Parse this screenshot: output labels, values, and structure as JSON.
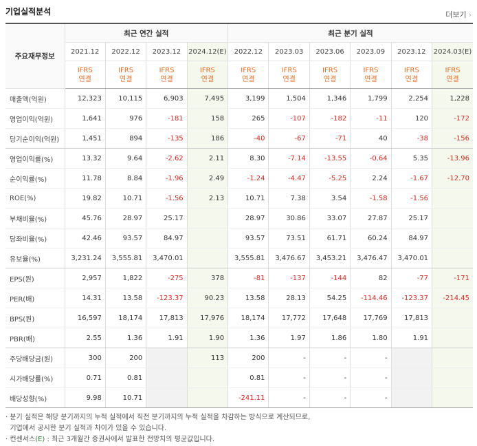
{
  "header": {
    "title": "기업실적분석",
    "more_label": "더보기",
    "more_chevron": "›"
  },
  "table": {
    "label_header": "주요재무정보",
    "group_headers": [
      "최근 연간 실적",
      "최근 분기 실적"
    ],
    "periods": [
      "2021.12",
      "2022.12",
      "2023.12",
      "2024.12(E)",
      "2022.12",
      "2023.03",
      "2023.06",
      "2023.09",
      "2023.12",
      "2024.03(E)"
    ],
    "accounting": {
      "line1": "IFRS",
      "line2": "연결"
    },
    "rows": [
      {
        "label": "매출액(억원)",
        "values": [
          "12,323",
          "10,115",
          "6,903",
          "7,495",
          "3,199",
          "1,504",
          "1,346",
          "1,799",
          "2,254",
          "1,228"
        ]
      },
      {
        "label": "영업이익(억원)",
        "values": [
          "1,641",
          "976",
          "-181",
          "158",
          "265",
          "-107",
          "-182",
          "-11",
          "120",
          "-172"
        ]
      },
      {
        "label": "당기순이익(억원)",
        "values": [
          "1,451",
          "894",
          "-135",
          "186",
          "-40",
          "-67",
          "-71",
          "40",
          "-38",
          "-156"
        ]
      },
      {
        "label": "영업이익률(%)",
        "values": [
          "13.32",
          "9.64",
          "-2.62",
          "2.11",
          "8.30",
          "-7.14",
          "-13.55",
          "-0.64",
          "5.35",
          "-13.96"
        ]
      },
      {
        "label": "순이익률(%)",
        "values": [
          "11.78",
          "8.84",
          "-1.96",
          "2.49",
          "-1.24",
          "-4.47",
          "-5.25",
          "2.24",
          "-1.67",
          "-12.70"
        ]
      },
      {
        "label": "ROE(%)",
        "values": [
          "19.82",
          "10.71",
          "-1.56",
          "2.13",
          "10.71",
          "7.38",
          "3.54",
          "-1.58",
          "-1.56",
          ""
        ]
      },
      {
        "label": "부채비율(%)",
        "values": [
          "45.76",
          "28.97",
          "25.17",
          "",
          "28.97",
          "30.86",
          "33.07",
          "27.87",
          "25.17",
          ""
        ]
      },
      {
        "label": "당좌비율(%)",
        "values": [
          "42.46",
          "93.57",
          "84.97",
          "",
          "93.57",
          "73.51",
          "61.71",
          "60.24",
          "84.97",
          ""
        ]
      },
      {
        "label": "유보율(%)",
        "values": [
          "3,231.24",
          "3,555.81",
          "3,470.01",
          "",
          "3,555.81",
          "3,476.67",
          "3,453.21",
          "3,476.47",
          "3,470.01",
          ""
        ]
      },
      {
        "label": "EPS(원)",
        "values": [
          "2,957",
          "1,822",
          "-275",
          "378",
          "-81",
          "-137",
          "-144",
          "82",
          "-77",
          "-171"
        ]
      },
      {
        "label": "PER(배)",
        "values": [
          "14.31",
          "13.58",
          "-123.37",
          "90.23",
          "13.58",
          "28.13",
          "54.25",
          "-114.46",
          "-123.37",
          "-214.45"
        ]
      },
      {
        "label": "BPS(원)",
        "values": [
          "16,597",
          "18,174",
          "17,813",
          "17,976",
          "18,174",
          "17,772",
          "17,648",
          "17,769",
          "17,813",
          ""
        ]
      },
      {
        "label": "PBR(배)",
        "values": [
          "2.55",
          "1.36",
          "1.91",
          "1.90",
          "1.36",
          "1.97",
          "1.86",
          "1.80",
          "1.91",
          ""
        ]
      },
      {
        "label": "주당배당금(원)",
        "values": [
          "300",
          "200",
          "",
          "113",
          "200",
          "-",
          "-",
          "-",
          "",
          ""
        ]
      },
      {
        "label": "시가배당률(%)",
        "values": [
          "0.71",
          "0.81",
          "",
          "",
          "0.81",
          "-",
          "-",
          "-",
          "",
          ""
        ]
      },
      {
        "label": "배당성향(%)",
        "values": [
          "9.98",
          "10.71",
          "",
          "",
          "-241.11",
          "-",
          "-",
          "-",
          "",
          ""
        ]
      }
    ]
  },
  "notes": {
    "line1": "· 분기 실적은 해당 분기까지의 누적 실적에서 직전 분기까지의 누적 실적을 차감하는 방식으로 계산되므로,",
    "line2": "  기업에서 공시한 분기 실적과 차이가 있을 수 있습니다.",
    "line3_pre": "· 컨센서스",
    "line3_e": "(E)",
    "line3_post": " : 최근 3개월간 증권사에서 발표한 전망치의 평균값입니다."
  }
}
